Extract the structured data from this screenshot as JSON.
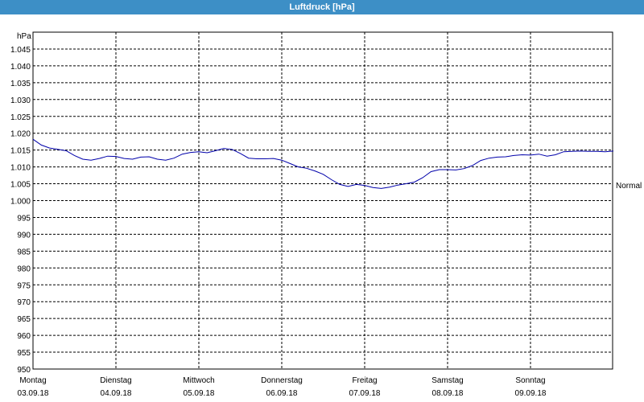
{
  "window": {
    "title": "Luftdruck [hPa]"
  },
  "chart_data": {
    "type": "line",
    "title": "Luftdruck [hPa]",
    "ylabel": "hPa",
    "ylim": [
      950,
      1050
    ],
    "y_ticks": [
      950,
      955,
      960,
      965,
      970,
      975,
      980,
      985,
      990,
      995,
      1000,
      1005,
      1010,
      1015,
      1020,
      1025,
      1030,
      1035,
      1040,
      1045
    ],
    "y_tick_labels": [
      "950",
      "955",
      "960",
      "965",
      "970",
      "975",
      "980",
      "985",
      "990",
      "995",
      "1.000",
      "1.005",
      "1.010",
      "1.015",
      "1.020",
      "1.025",
      "1.030",
      "1.035",
      "1.040",
      "1.045"
    ],
    "xlim": [
      0,
      7
    ],
    "x_ticks": [
      {
        "day": "Montag",
        "date": "03.09.18"
      },
      {
        "day": "Dienstag",
        "date": "04.09.18"
      },
      {
        "day": "Mittwoch",
        "date": "05.09.18"
      },
      {
        "day": "Donnerstag",
        "date": "06.09.18"
      },
      {
        "day": "Freitag",
        "date": "07.09.18"
      },
      {
        "day": "Samstag",
        "date": "08.09.18"
      },
      {
        "day": "Sonntag",
        "date": "09.09.18"
      }
    ],
    "reference_line": {
      "label": "Normal",
      "value": 1004.6
    },
    "grid": true,
    "line_color": "#0000aa",
    "series": [
      {
        "x": [
          0,
          0.1,
          0.2,
          0.3,
          0.4,
          0.5,
          0.6,
          0.7,
          0.8,
          0.9,
          1.0,
          1.1,
          1.2,
          1.3,
          1.4,
          1.5,
          1.6,
          1.7,
          1.8,
          1.9,
          2.0,
          2.1,
          2.2,
          2.3,
          2.4,
          2.5,
          2.6,
          2.7,
          2.8,
          2.9,
          3.0,
          3.1,
          3.2,
          3.3,
          3.4,
          3.5,
          3.6,
          3.7,
          3.8,
          3.9,
          4.0,
          4.1,
          4.2,
          4.3,
          4.4,
          4.5,
          4.6,
          4.7,
          4.8,
          4.9,
          5.0,
          5.1,
          5.2,
          5.3,
          5.4,
          5.5,
          5.6,
          5.7,
          5.8,
          5.9,
          6.0,
          6.1,
          6.2,
          6.3,
          6.4,
          6.5,
          6.6,
          6.7,
          6.8,
          6.9,
          7.0
        ],
        "values": [
          1018.2,
          1016.5,
          1015.6,
          1015.2,
          1014.8,
          1013.4,
          1012.3,
          1012.0,
          1012.5,
          1013.2,
          1013.1,
          1012.5,
          1012.3,
          1012.9,
          1013.0,
          1012.3,
          1012.0,
          1012.6,
          1013.8,
          1014.3,
          1014.5,
          1014.2,
          1014.8,
          1015.5,
          1015.2,
          1014.0,
          1012.6,
          1012.4,
          1012.4,
          1012.5,
          1012.0,
          1011.0,
          1010.0,
          1009.6,
          1008.8,
          1007.8,
          1006.2,
          1004.8,
          1004.2,
          1004.8,
          1004.5,
          1003.9,
          1003.6,
          1004.0,
          1004.6,
          1005.0,
          1005.5,
          1006.8,
          1008.6,
          1009.2,
          1009.2,
          1009.1,
          1009.5,
          1010.4,
          1011.9,
          1012.6,
          1012.9,
          1013.0,
          1013.4,
          1013.6,
          1013.5,
          1013.8,
          1013.2,
          1013.6,
          1014.5,
          1014.6,
          1014.7,
          1014.6,
          1014.6,
          1014.5,
          1014.7
        ]
      }
    ]
  }
}
